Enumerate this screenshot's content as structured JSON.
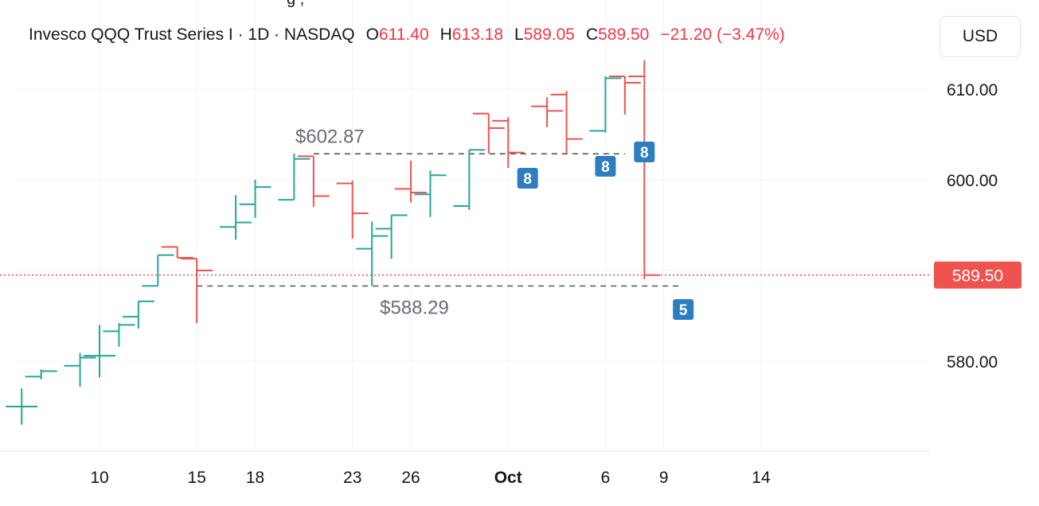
{
  "header": {
    "symbol": "Invesco QQQ Trust Series I · 1D · NASDAQ",
    "o_label": "O",
    "o_value": "611.40",
    "h_label": "H",
    "h_value": "613.18",
    "l_label": "L",
    "l_value": "589.05",
    "c_label": "C",
    "c_value": "589.50",
    "change": "−21.20 (−3.47%)"
  },
  "currency_button": "USD",
  "colors": {
    "up": "#26a69a",
    "down": "#ef5350",
    "badge": "#2d7dc1",
    "price_line": "#ef5350",
    "grid": "#f0f3fa"
  },
  "chart_data": {
    "type": "ohlc-bar",
    "interval": "1D",
    "ylim": [
      570,
      616
    ],
    "y_ticks": [
      "580.00",
      "600.00",
      "610.00"
    ],
    "x_ticks": [
      {
        "label": "10",
        "date": "2024-09-10",
        "bold": false
      },
      {
        "label": "15",
        "date": "2024-09-15",
        "bold": false
      },
      {
        "label": "18",
        "date": "2024-09-18",
        "bold": false
      },
      {
        "label": "23",
        "date": "2024-09-23",
        "bold": false
      },
      {
        "label": "26",
        "date": "2024-09-26",
        "bold": false
      },
      {
        "label": "Oct",
        "date": "2024-10-01",
        "bold": true
      },
      {
        "label": "6",
        "date": "2024-10-06",
        "bold": false
      },
      {
        "label": "9",
        "date": "2024-10-09",
        "bold": false
      },
      {
        "label": "14",
        "date": "2024-10-14",
        "bold": false
      }
    ],
    "bars": [
      {
        "date": "2024-09-06",
        "o": 575,
        "h": 577,
        "l": 573,
        "c": 575
      },
      {
        "date": "2024-09-07",
        "o": 578.3,
        "h": 579.1,
        "l": 578.0,
        "c": 578.9
      },
      {
        "date": "2024-09-09",
        "o": 579.5,
        "h": 580.9,
        "l": 577.2,
        "c": 580.4
      },
      {
        "date": "2024-09-10",
        "o": 580.6,
        "h": 584.0,
        "l": 578.2,
        "c": 580.6
      },
      {
        "date": "2024-09-11",
        "o": 583.3,
        "h": 584.2,
        "l": 581.6,
        "c": 584.0
      },
      {
        "date": "2024-09-12",
        "o": 584.9,
        "h": 586.6,
        "l": 583.6,
        "c": 586.6
      },
      {
        "date": "2024-09-13",
        "o": 588.3,
        "h": 591.7,
        "l": 588.3,
        "c": 591.7
      },
      {
        "date": "2024-09-14",
        "o": 592.6,
        "h": 592.6,
        "l": 591.4,
        "c": 591.4
      },
      {
        "date": "2024-09-15",
        "o": 591.3,
        "h": 591.3,
        "l": 584.2,
        "c": 590.0
      },
      {
        "date": "2024-09-17",
        "o": 594.8,
        "h": 598.3,
        "l": 593.4,
        "c": 595.3
      },
      {
        "date": "2024-09-18",
        "o": 597.3,
        "h": 600.0,
        "l": 595.8,
        "c": 599.2
      },
      {
        "date": "2024-09-20",
        "o": 597.8,
        "h": 602.9,
        "l": 597.8,
        "c": 602.3
      },
      {
        "date": "2024-09-21",
        "o": 602.6,
        "h": 602.6,
        "l": 597.0,
        "c": 598.2
      },
      {
        "date": "2024-09-23",
        "o": 599.6,
        "h": 599.9,
        "l": 593.5,
        "c": 596.3
      },
      {
        "date": "2024-09-24",
        "o": 592.4,
        "h": 595.4,
        "l": 588.3,
        "c": 593.8
      },
      {
        "date": "2024-09-25",
        "o": 594.6,
        "h": 596.1,
        "l": 591.3,
        "c": 596.1
      },
      {
        "date": "2024-09-26",
        "o": 599.0,
        "h": 602.1,
        "l": 597.5,
        "c": 598.6
      },
      {
        "date": "2024-09-27",
        "o": 598.4,
        "h": 601.0,
        "l": 595.9,
        "c": 600.5
      },
      {
        "date": "2024-09-29",
        "o": 597.1,
        "h": 603.3,
        "l": 596.7,
        "c": 603.3
      },
      {
        "date": "2024-09-30",
        "o": 607.3,
        "h": 607.3,
        "l": 602.9,
        "c": 605.7
      },
      {
        "date": "2024-10-01",
        "o": 606.5,
        "h": 606.9,
        "l": 601.3,
        "c": 603.0
      },
      {
        "date": "2024-10-03",
        "o": 608.1,
        "h": 609.1,
        "l": 605.8,
        "c": 607.6
      },
      {
        "date": "2024-10-04",
        "o": 609.4,
        "h": 609.8,
        "l": 602.9,
        "c": 604.5
      },
      {
        "date": "2024-10-06",
        "o": 605.4,
        "h": 611.4,
        "l": 605.2,
        "c": 611.2
      },
      {
        "date": "2024-10-07",
        "o": 611.4,
        "h": 611.4,
        "l": 607.2,
        "c": 610.7
      },
      {
        "date": "2024-10-08",
        "o": 611.4,
        "h": 613.18,
        "l": 589.05,
        "c": 589.5
      }
    ],
    "annotations": [
      {
        "type": "price-label",
        "text": "$602.87",
        "value": 602.87
      },
      {
        "type": "price-label",
        "text": "$588.29",
        "value": 588.29
      }
    ],
    "badges": [
      {
        "text": "8",
        "date": "2024-10-02"
      },
      {
        "text": "8",
        "date": "2024-10-06"
      },
      {
        "text": "8",
        "date": "2024-10-08"
      },
      {
        "text": "5",
        "date": "2024-10-10"
      }
    ],
    "last_price": {
      "value": 589.5,
      "label": "589.50"
    },
    "grid": true
  }
}
